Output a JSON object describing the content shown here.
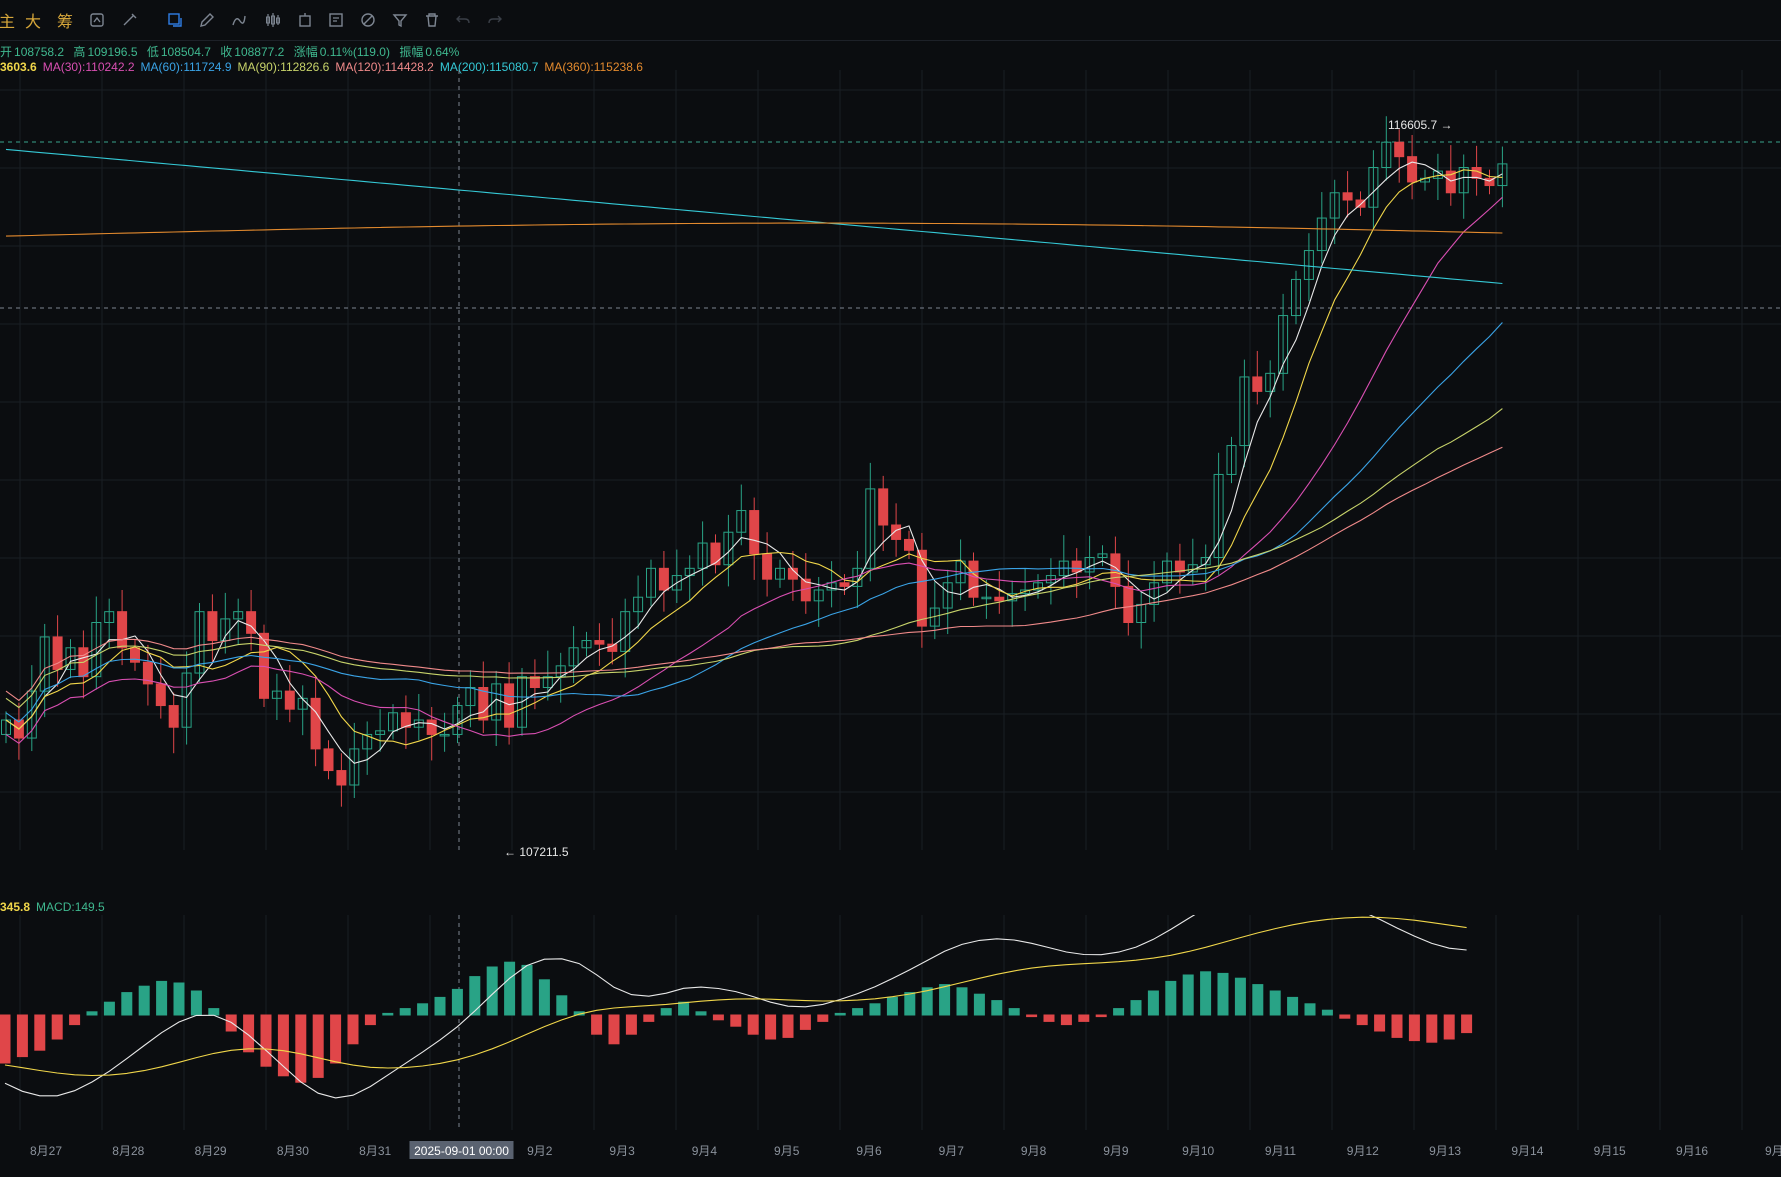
{
  "toolbar": {
    "text_buttons": [
      {
        "name": "period-tab-main",
        "label": "主"
      },
      {
        "name": "period-tab-big",
        "label": "大"
      },
      {
        "name": "chip-tab",
        "label": "筹"
      }
    ],
    "icons": [
      "replay-icon",
      "brush-icon",
      "draw-line-icon",
      "pencil-icon",
      "candlestick-icon",
      "timer-icon",
      "note-icon",
      "measure-icon",
      "filter-icon",
      "trash-icon",
      "undo-icon",
      "redo-icon"
    ]
  },
  "ohlc": {
    "open_label": "开",
    "open": "108758.2",
    "high_label": "高",
    "high": "109196.5",
    "low_label": "低",
    "low": "108504.7",
    "close_label": "收",
    "close": "108877.2",
    "change_label": "涨幅",
    "change": "0.11%(119.0)",
    "amp_label": "振幅",
    "amp": "0.64%"
  },
  "ma_legend": [
    {
      "text": "3603.6",
      "color": "#f0d64a",
      "bold": true
    },
    {
      "text": "MA(30):110242.2",
      "color": "#d94fb2"
    },
    {
      "text": "MA(60):111724.9",
      "color": "#3aa3e6"
    },
    {
      "text": "MA(90):112826.6",
      "color": "#c7d36a"
    },
    {
      "text": "MA(120):114428.2",
      "color": "#f08a8a"
    },
    {
      "text": "MA(200):115080.7",
      "color": "#35c9d6"
    },
    {
      "text": "MA(360):115238.6",
      "color": "#e38a2e"
    }
  ],
  "macd_legend": [
    {
      "text": "345.8",
      "color": "#f0d64a",
      "bold": true
    },
    {
      "text": "MACD:149.5",
      "color": "#3fb88f"
    }
  ],
  "price_markers": {
    "high": "116605.7",
    "low": "107211.5"
  },
  "x_axis": {
    "labels": [
      "8月27",
      "8月28",
      "8月29",
      "8月30",
      "8月31",
      "2025-09-01 00:00",
      "9月2",
      "9月3",
      "9月4",
      "9月5",
      "9月6",
      "9月7",
      "9月8",
      "9月9",
      "9月10",
      "9月11",
      "9月12",
      "9月13",
      "9月14",
      "9月15",
      "9月16",
      "9月"
    ],
    "highlight_index": 5
  },
  "colors": {
    "up": "#29a386",
    "down": "#e04649",
    "grid": "#1a1e24",
    "background": "#0b0d10"
  },
  "chart_data": {
    "type": "candlestick",
    "title": "",
    "y_range": [
      106500,
      117300
    ],
    "series_close_4h": [
      108300,
      108050,
      108700,
      109450,
      109000,
      109300,
      108900,
      109650,
      109800,
      109300,
      109100,
      108800,
      108500,
      108200,
      108950,
      109800,
      109400,
      109700,
      109800,
      109500,
      108600,
      108700,
      108450,
      108600,
      107900,
      107600,
      107400,
      107900,
      108100,
      108150,
      108400,
      108200,
      108300,
      108100,
      108100,
      108500,
      108750,
      108300,
      108800,
      108200,
      108900,
      108750,
      108900,
      109050,
      109300,
      109400,
      109350,
      109250,
      109800,
      110000,
      110400,
      110100,
      110300,
      110400,
      110750,
      110450,
      110900,
      111200,
      110600,
      110250,
      110400,
      110250,
      109950,
      110100,
      110200,
      110150,
      110400,
      111500,
      111000,
      110800,
      110650,
      109600,
      109850,
      110200,
      110500,
      110000,
      110000,
      109950,
      110050,
      110100,
      110200,
      110300,
      110500,
      110350,
      110550,
      110600,
      110150,
      109650,
      109900,
      110200,
      110500,
      110350,
      110450,
      110550,
      111700,
      112100,
      113050,
      112850,
      113100,
      113900,
      114400,
      114800,
      115250,
      115600,
      115500,
      115400,
      115950,
      116300,
      116100,
      115750,
      115800,
      115900,
      115600,
      115950,
      115800,
      115700,
      116000
    ],
    "price_markers": {
      "high": 116605.7,
      "low": 107211.5
    },
    "moving_averages": [
      "MA(30)",
      "MA(60)",
      "MA(90)",
      "MA(120)",
      "MA(200)",
      "MA(360)"
    ],
    "macd_histogram_sample": [
      -300,
      -260,
      -220,
      -150,
      -60,
      20,
      80,
      140,
      180,
      210,
      200,
      150,
      40,
      -100,
      -230,
      -320,
      -380,
      -420,
      -390,
      -300,
      -180,
      -60,
      10,
      40,
      70,
      110,
      160,
      240,
      300,
      330,
      310,
      220,
      120,
      20,
      -120,
      -180,
      -120,
      -40,
      40,
      80,
      20,
      -30,
      -70,
      -120,
      -150,
      -140,
      -90,
      -40,
      10,
      40,
      70,
      110,
      140,
      170,
      190,
      170,
      130,
      90,
      40,
      -10,
      -40,
      -60,
      -40,
      -10,
      40,
      90,
      150,
      210,
      250,
      270,
      260,
      230,
      190,
      150,
      110,
      70,
      30,
      -20,
      -60,
      -100,
      -140,
      -160,
      -170,
      -150,
      -110
    ],
    "x_labels_ref": "x_axis.labels"
  }
}
